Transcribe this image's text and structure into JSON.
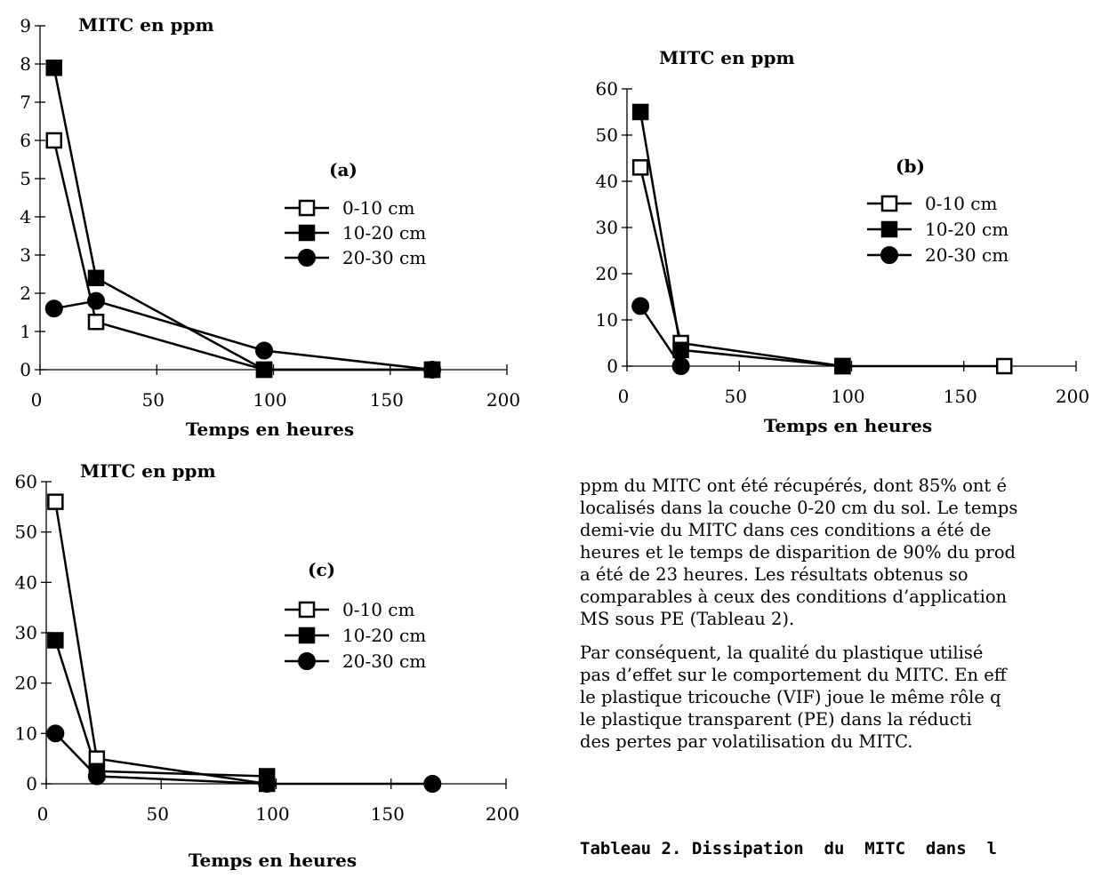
{
  "chart_data": [
    {
      "type": "line",
      "panel_label": "(a)",
      "title": "",
      "ylabel": "MITC en ppm",
      "xlabel": "Temps en heures",
      "xlim": [
        0,
        200
      ],
      "ylim": [
        0,
        9
      ],
      "xticks": [
        0,
        50,
        100,
        150,
        200
      ],
      "yticks": [
        0,
        1,
        2,
        3,
        4,
        5,
        6,
        7,
        8,
        9
      ],
      "legend_position": "right",
      "series": [
        {
          "name": "0-10 cm",
          "marker": "open-square",
          "x": [
            6,
            24,
            96,
            168
          ],
          "y": [
            6.0,
            1.25,
            0,
            0
          ]
        },
        {
          "name": "10-20 cm",
          "marker": "filled-square",
          "x": [
            6,
            24,
            96,
            168
          ],
          "y": [
            7.9,
            2.4,
            0,
            0
          ]
        },
        {
          "name": "20-30 cm",
          "marker": "filled-circle",
          "x": [
            6,
            24,
            96,
            168
          ],
          "y": [
            1.6,
            1.8,
            0.5,
            0
          ]
        }
      ]
    },
    {
      "type": "line",
      "panel_label": "(b)",
      "title": "",
      "ylabel": "MITC en ppm",
      "xlabel": "Temps en heures",
      "xlim": [
        0,
        200
      ],
      "ylim": [
        0,
        60
      ],
      "xticks": [
        0,
        50,
        100,
        150,
        200
      ],
      "yticks": [
        0,
        10,
        20,
        30,
        40,
        50,
        60
      ],
      "legend_position": "right",
      "series": [
        {
          "name": "0-10 cm",
          "marker": "open-square",
          "x": [
            6,
            24,
            96,
            168
          ],
          "y": [
            43,
            5,
            0,
            0
          ]
        },
        {
          "name": "10-20 cm",
          "marker": "filled-square",
          "x": [
            6,
            24,
            96
          ],
          "y": [
            55,
            3.5,
            0
          ]
        },
        {
          "name": "20-30 cm",
          "marker": "filled-circle",
          "x": [
            6,
            24
          ],
          "y": [
            13,
            0
          ]
        }
      ]
    },
    {
      "type": "line",
      "panel_label": "(c)",
      "title": "",
      "ylabel": "MITC en ppm",
      "xlabel": "Temps en heures",
      "xlim": [
        0,
        200
      ],
      "ylim": [
        0,
        60
      ],
      "xticks": [
        0,
        50,
        100,
        150,
        200
      ],
      "yticks": [
        0,
        10,
        20,
        30,
        40,
        50,
        60
      ],
      "legend_position": "right",
      "series": [
        {
          "name": "0-10 cm",
          "marker": "open-square",
          "x": [
            4,
            22,
            96
          ],
          "y": [
            56,
            5,
            0
          ]
        },
        {
          "name": "10-20 cm",
          "marker": "filled-square",
          "x": [
            4,
            22,
            96
          ],
          "y": [
            28.5,
            2.5,
            1.5
          ]
        },
        {
          "name": "20-30 cm",
          "marker": "filled-circle",
          "x": [
            4,
            22,
            96,
            168
          ],
          "y": [
            10,
            1.5,
            0,
            0
          ]
        }
      ]
    }
  ],
  "text": {
    "paragraph1": [
      "ppm du MITC ont été récupérés, dont  85% ont é",
      "localisés dans la couche 0-20 cm du sol. Le temps",
      "demi-vie du MITC dans ces conditions a été de",
      "heures et le temps de disparition de 90% du prod",
      "a été de 23 heures. Les résultats obtenus so",
      "comparables à ceux des conditions d’application",
      "MS sous PE (Tableau 2)."
    ],
    "paragraph2": [
      " Par conséquent, la qualité du plastique utilisé",
      "pas d’effet sur le comportement du MITC. En eff",
      "le plastique tricouche (VIF) joue le même rôle q",
      "le plastique transparent (PE)  dans la réducti",
      "des pertes par volatilisation du MITC."
    ],
    "table_caption": "Tableau 2. Dissipation  du  MITC  dans  l"
  }
}
